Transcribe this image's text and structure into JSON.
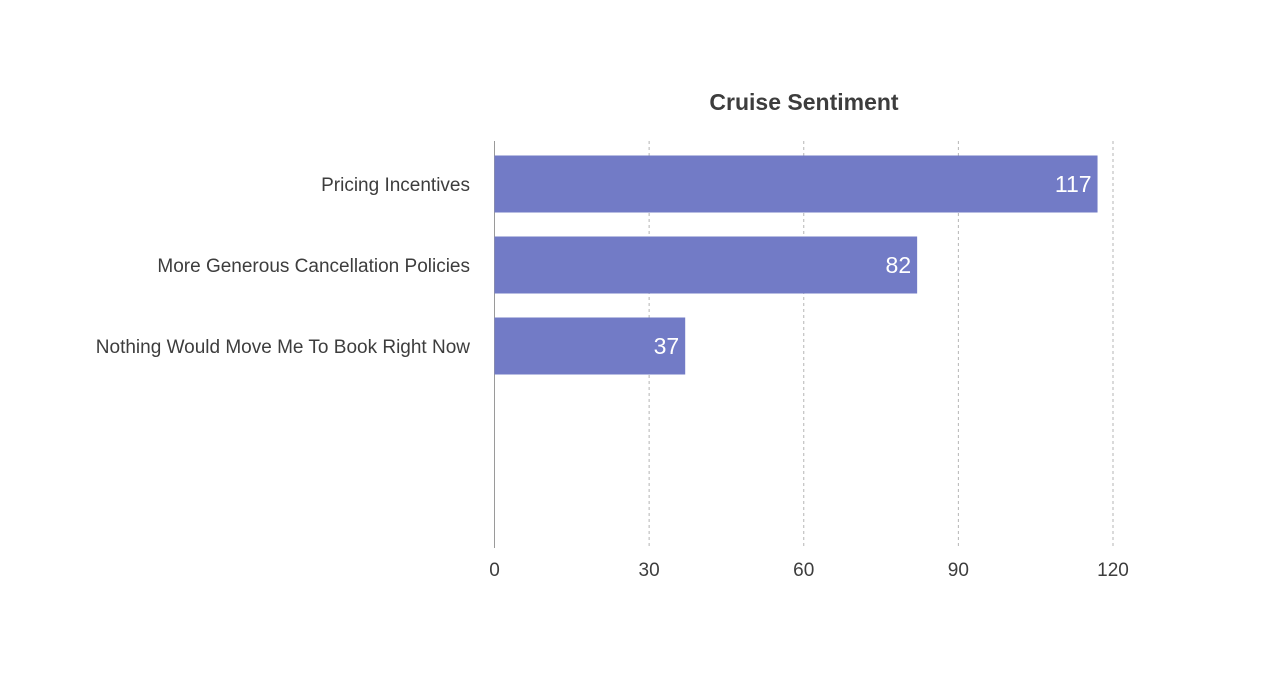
{
  "chart_data": {
    "type": "bar",
    "orientation": "horizontal",
    "title": "Cruise Sentiment",
    "xlabel": "",
    "ylabel": "",
    "categories": [
      "Pricing Incentives",
      "More Generous Cancellation Policies",
      "Nothing Would Move Me To Book Right Now"
    ],
    "values": [
      117,
      82,
      37
    ],
    "value_labels": [
      "117",
      "82",
      "37"
    ],
    "xlim": [
      0,
      120
    ],
    "ticks": [
      0,
      30,
      60,
      90,
      120
    ],
    "tick_labels": [
      "0",
      "30",
      "60",
      "90",
      "120"
    ],
    "grid": true,
    "legend": "none",
    "bar_color": "#727bc6"
  }
}
